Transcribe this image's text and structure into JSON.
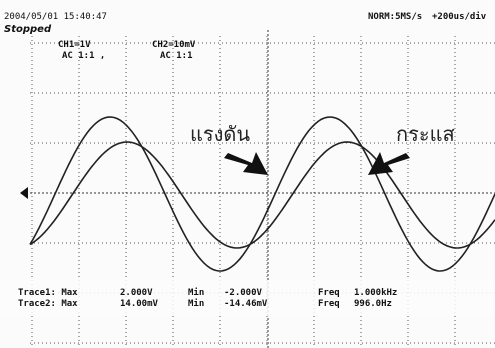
{
  "header": {
    "timestamp": "2004/05/01 15:40:47",
    "status": "Stopped",
    "sampling": "NORM:5MS/s",
    "timebase": "+200us/div"
  },
  "channels": [
    {
      "scale": "CH1=1V",
      "coupling": "AC 1:1 ,"
    },
    {
      "scale": "CH2=10mV",
      "coupling": "AC 1:1"
    }
  ],
  "annotations": {
    "voltage": "แรงดัน",
    "current": "กระแส"
  },
  "measurements": [
    {
      "trace": "Trace1: Max",
      "max": "2.000V",
      "min_label": "Min",
      "min": "-2.000V",
      "freq_label": "Freq",
      "freq": "1.000kHz"
    },
    {
      "trace": "Trace2: Max",
      "max": "14.00mV",
      "min_label": "Min",
      "min": "-14.46mV",
      "freq_label": "Freq",
      "freq": "996.0Hz"
    }
  ]
}
